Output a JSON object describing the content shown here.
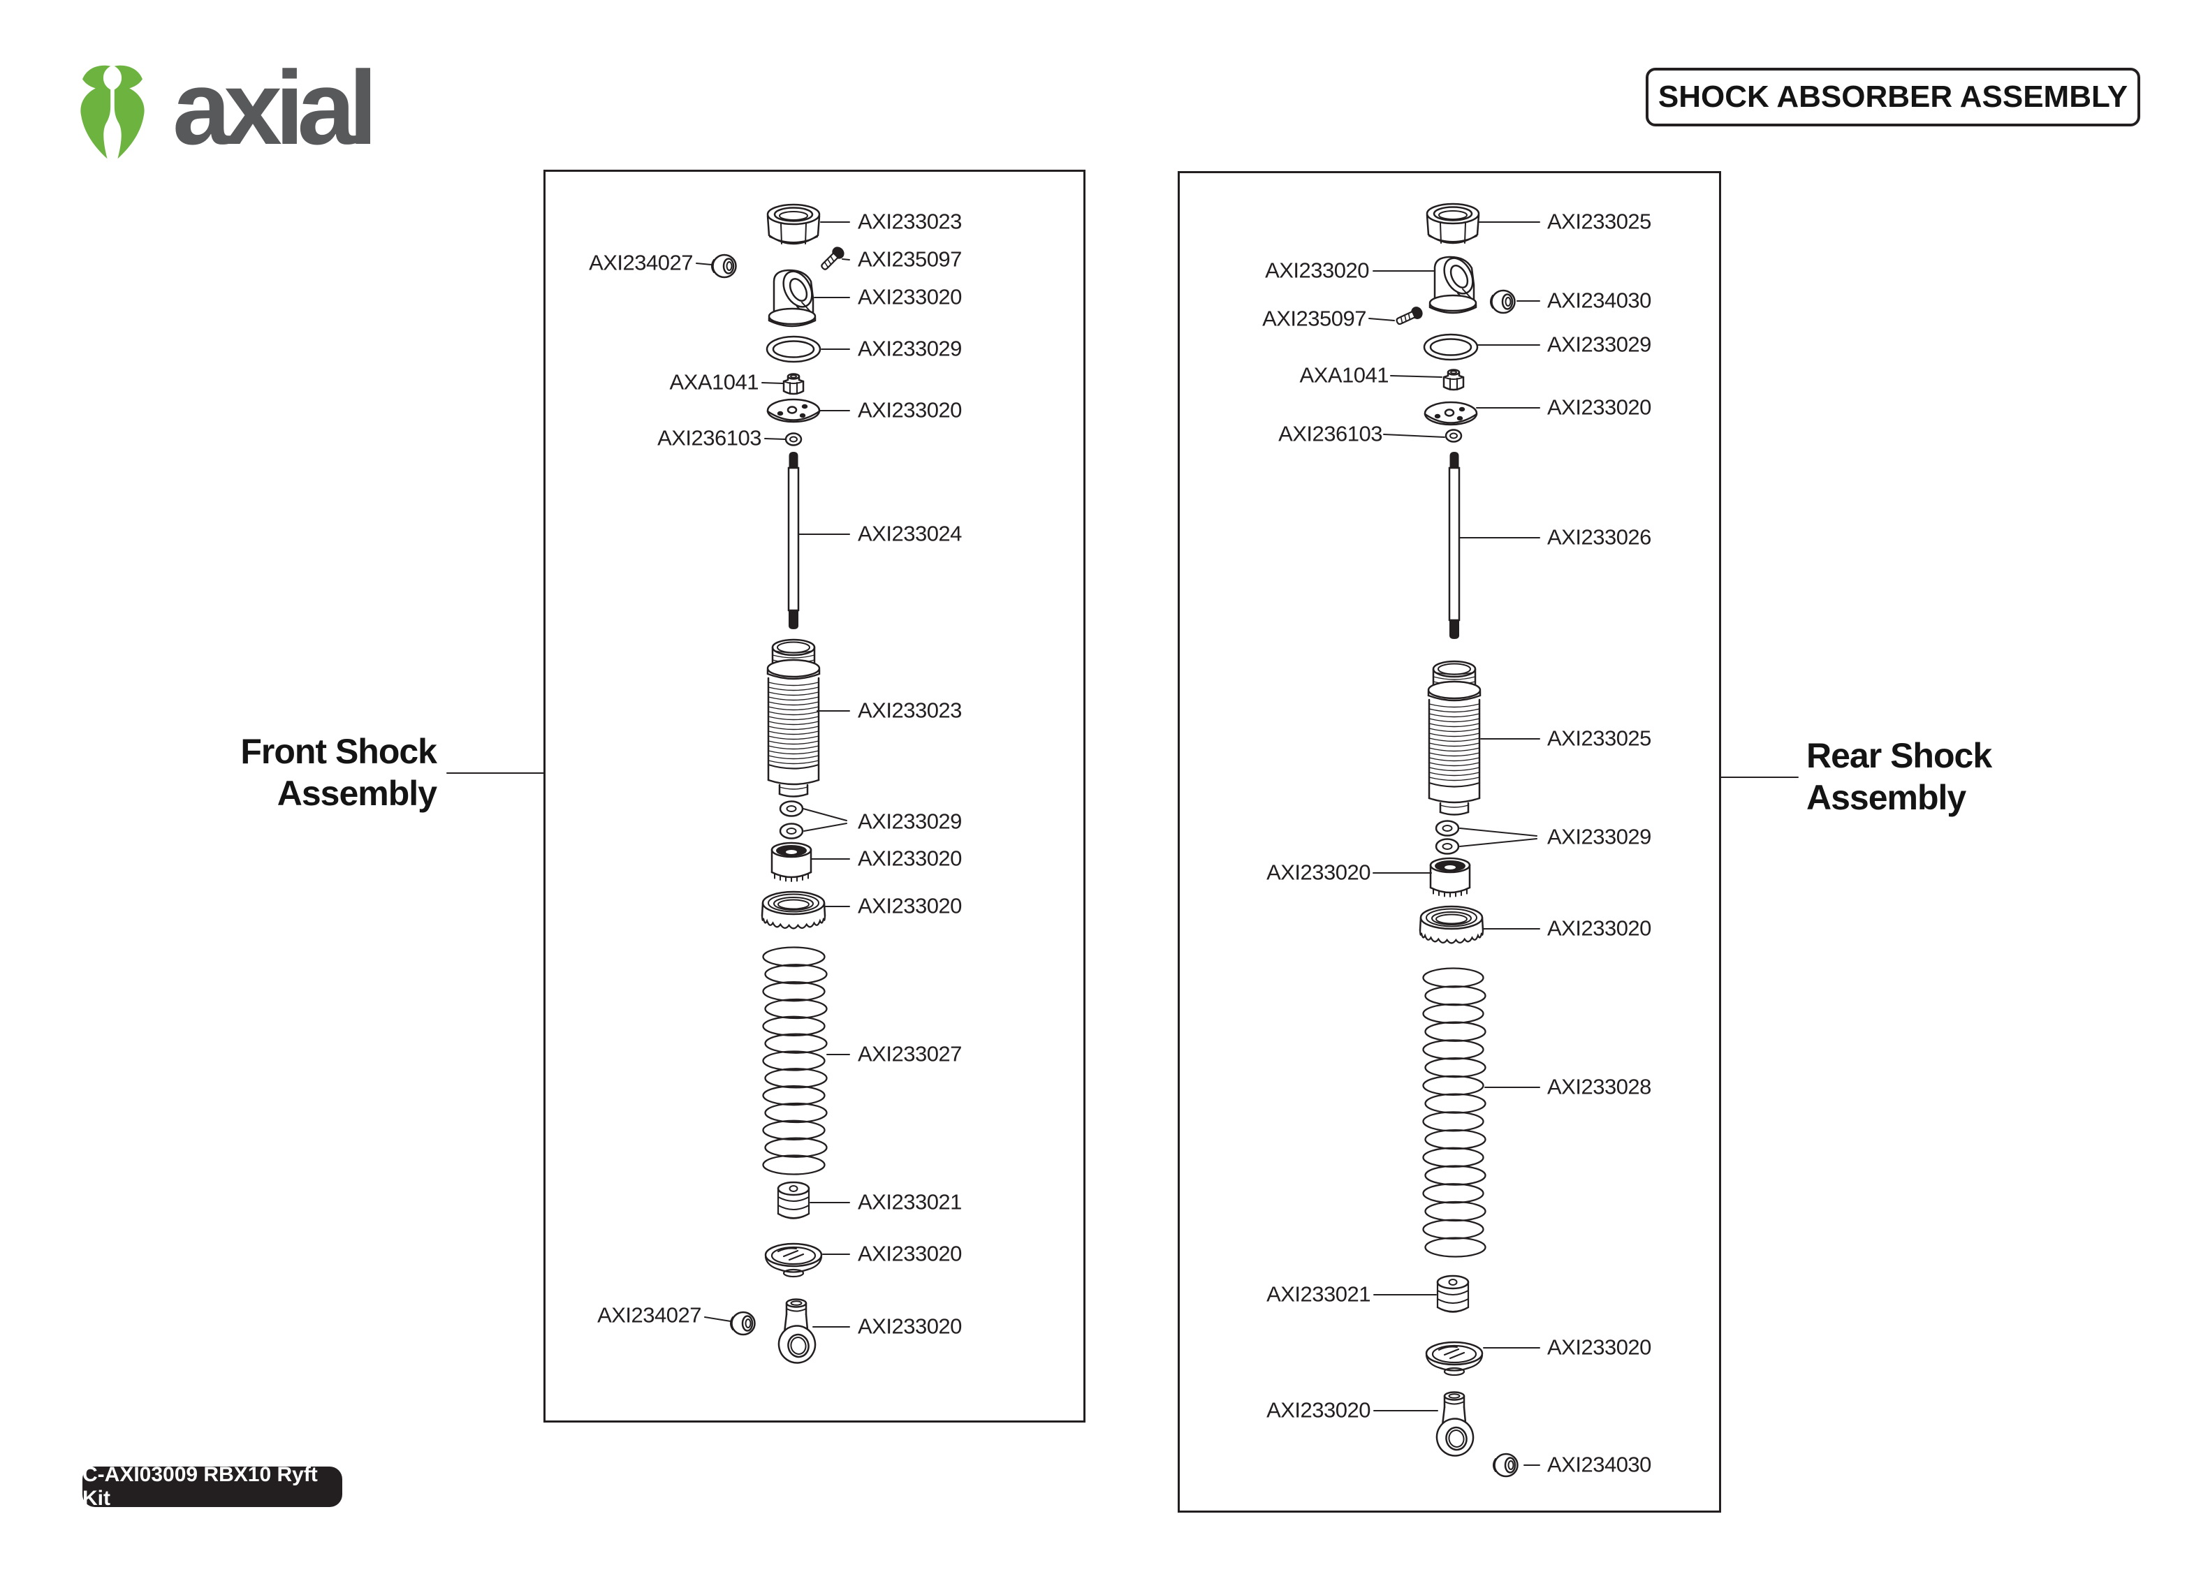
{
  "header": {
    "brand_text": "axial",
    "title": "SHOCK ABSORBER ASSEMBLY"
  },
  "kit_badge": "C-AXI03009 RBX10 Ryft Kit",
  "colors": {
    "ink": "#231F20",
    "brand_green": "#6CB33F",
    "logo_gray": "#58595B"
  },
  "front_assembly": {
    "title_line1": "Front Shock",
    "title_line2": "Assembly",
    "labels_right": [
      "AXI233023",
      "AXI235097",
      "AXI233020",
      "AXI233029",
      "AXI233020",
      "AXI233024",
      "AXI233023",
      "AXI233029",
      "AXI233020",
      "AXI233020",
      "AXI233027",
      "AXI233021",
      "AXI233020",
      "AXI233020"
    ],
    "labels_left": [
      "AXI234027",
      "AXA1041",
      "AXI236103",
      "AXI234027"
    ]
  },
  "rear_assembly": {
    "title_line1": "Rear Shock",
    "title_line2": "Assembly",
    "labels_right": [
      "AXI233025",
      "AXI234030",
      "AXI233029",
      "AXI233020",
      "AXI233026",
      "AXI233025",
      "AXI233029",
      "AXI233020",
      "AXI233028",
      "AXI233020",
      "AXI234030"
    ],
    "labels_left": [
      "AXI233020",
      "AXI235097",
      "AXA1041",
      "AXI236103",
      "AXI233020",
      "AXI233021",
      "AXI233020"
    ]
  }
}
